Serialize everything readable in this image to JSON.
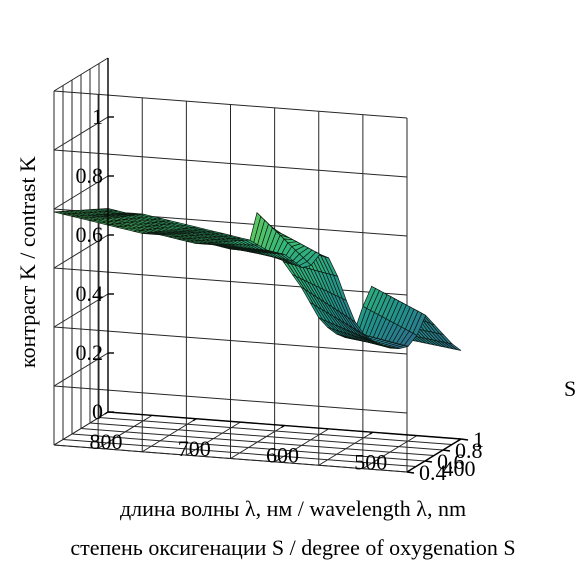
{
  "chart_data": {
    "type": "surface",
    "xlabel": "длина волны λ, нм / wavelength λ, nm",
    "ylabel": "контраст K / contrast K",
    "slabel_caption": "степень оксигенации S / degree of oxygenation S",
    "s_axis_label": "S",
    "x_axis": {
      "range": [
        400,
        800
      ],
      "ticks": [
        "800",
        "700",
        "600",
        "500",
        "400"
      ]
    },
    "s_axis": {
      "range": [
        0.4,
        1
      ],
      "ticks": [
        "0.4",
        "0.6",
        "0.8",
        "1"
      ]
    },
    "z_axis": {
      "range": [
        0,
        1
      ],
      "ticks": [
        "0",
        "0.2",
        "0.4",
        "0.6",
        "0.8",
        "1"
      ]
    },
    "grid": true,
    "colormap": "viridis-like (green high, blue low)",
    "surface_profile": {
      "wavelength": [
        800,
        780,
        760,
        740,
        720,
        700,
        680,
        660,
        640,
        620,
        600,
        590,
        580,
        575,
        570,
        560,
        550,
        540,
        530,
        520,
        510,
        500,
        490,
        480,
        470,
        460,
        450,
        440,
        430,
        420,
        410,
        400
      ],
      "contrast_at_S_0_4": [
        0.79,
        0.78,
        0.77,
        0.76,
        0.75,
        0.74,
        0.74,
        0.73,
        0.72,
        0.72,
        0.71,
        0.71,
        0.72,
        0.8,
        0.84,
        0.8,
        0.74,
        0.68,
        0.64,
        0.6,
        0.55,
        0.5,
        0.47,
        0.45,
        0.44,
        0.46,
        0.55,
        0.62,
        0.56,
        0.5,
        0.47,
        0.45
      ],
      "contrast_at_S_1": [
        0.69,
        0.68,
        0.68,
        0.67,
        0.66,
        0.65,
        0.64,
        0.63,
        0.62,
        0.59,
        0.58,
        0.56,
        0.54,
        0.52,
        0.55,
        0.59,
        0.58,
        0.52,
        0.44,
        0.37,
        0.33,
        0.31,
        0.3,
        0.29,
        0.29,
        0.3,
        0.34,
        0.41,
        0.38,
        0.35,
        0.32,
        0.3
      ]
    }
  }
}
